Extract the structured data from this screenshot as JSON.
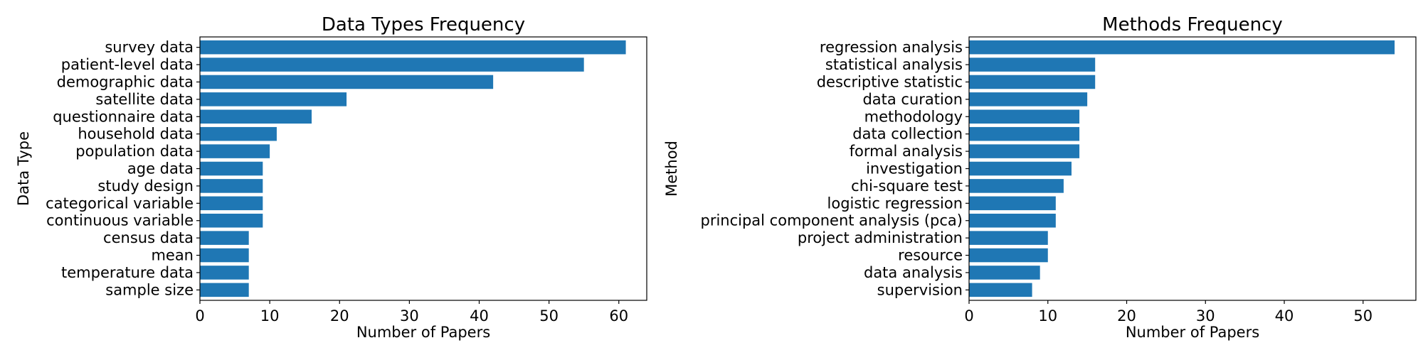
{
  "chart_data": [
    {
      "type": "bar",
      "orientation": "horizontal",
      "title": "Data Types Frequency",
      "xlabel": "Number of Papers",
      "ylabel": "Data Type",
      "xlim": [
        0,
        64
      ],
      "xticks": [
        0,
        10,
        20,
        30,
        40,
        50,
        60
      ],
      "categories": [
        "survey data",
        "patient-level data",
        "demographic data",
        "satellite data",
        "questionnaire data",
        "household data",
        "population data",
        "age data",
        "study design",
        "categorical variable",
        "continuous variable",
        "census data",
        "mean",
        "temperature data",
        "sample size"
      ],
      "values": [
        61,
        55,
        42,
        21,
        16,
        11,
        10,
        9,
        9,
        9,
        9,
        7,
        7,
        7,
        7
      ],
      "color": "#1f77b4",
      "grid": false
    },
    {
      "type": "bar",
      "orientation": "horizontal",
      "title": "Methods Frequency",
      "xlabel": "Number of Papers",
      "ylabel": "Method",
      "xlim": [
        0,
        56.7
      ],
      "xticks": [
        0,
        10,
        20,
        30,
        40,
        50
      ],
      "categories": [
        "regression analysis",
        "statistical analysis",
        "descriptive statistic",
        "data curation",
        "methodology",
        "data collection",
        "formal analysis",
        "investigation",
        "chi-square test",
        "logistic regression",
        "principal component analysis (pca)",
        "project administration",
        "resource",
        "data analysis",
        "supervision"
      ],
      "values": [
        54,
        16,
        16,
        15,
        14,
        14,
        14,
        13,
        12,
        11,
        11,
        10,
        10,
        9,
        8
      ],
      "color": "#1f77b4",
      "grid": false
    }
  ]
}
